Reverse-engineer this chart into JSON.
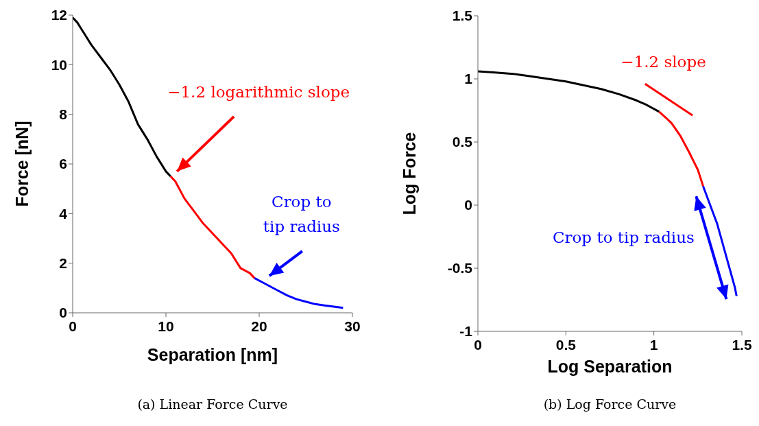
{
  "chart_data": [
    {
      "type": "line",
      "title": "(a) Linear Force Curve",
      "xlabel": "Separation [nm]",
      "ylabel": "Force [nN]",
      "xlim": [
        0,
        30
      ],
      "xticks": [
        0,
        10,
        20,
        30
      ],
      "ylim": [
        0,
        12
      ],
      "yticks": [
        0,
        2,
        4,
        6,
        8,
        10,
        12
      ],
      "annotations": [
        "−1.2 logarithmic slope",
        "Crop to\ntip radius"
      ],
      "series": [
        {
          "color": "#000000",
          "x": [
            0,
            0.5,
            1,
            1.5,
            2,
            3,
            4,
            5,
            6,
            7,
            8,
            9,
            10,
            10.5
          ],
          "values": [
            11.9,
            11.7,
            11.4,
            11.1,
            10.8,
            10.3,
            9.8,
            9.2,
            8.5,
            7.6,
            7.0,
            6.3,
            5.7,
            5.5
          ]
        },
        {
          "color": "#ff0000",
          "x": [
            10.5,
            11,
            12,
            13,
            14,
            15,
            16,
            17,
            18,
            19,
            19.5
          ],
          "values": [
            5.5,
            5.3,
            4.6,
            4.1,
            3.6,
            3.2,
            2.8,
            2.4,
            1.8,
            1.6,
            1.4
          ]
        },
        {
          "color": "#0000ff",
          "x": [
            19.5,
            20,
            21,
            22,
            23,
            24,
            25,
            26,
            27,
            28,
            29
          ],
          "values": [
            1.4,
            1.3,
            1.1,
            0.9,
            0.7,
            0.55,
            0.45,
            0.35,
            0.3,
            0.25,
            0.2
          ]
        }
      ]
    },
    {
      "type": "line",
      "title": "(b) Log Force Curve",
      "xlabel": "Log Separation",
      "ylabel": "Log Force",
      "xlim": [
        0,
        1.5
      ],
      "xticks": [
        0,
        0.5,
        1,
        1.5
      ],
      "ylim": [
        -1,
        1.5
      ],
      "yticks": [
        -1,
        -0.5,
        0,
        0.5,
        1,
        1.5
      ],
      "annotations": [
        "−1.2 slope",
        "Crop to tip radius"
      ],
      "series": [
        {
          "color": "#000000",
          "x": [
            0,
            0.1,
            0.2,
            0.3,
            0.4,
            0.5,
            0.6,
            0.7,
            0.8,
            0.9,
            0.95,
            1.03
          ],
          "values": [
            1.06,
            1.05,
            1.04,
            1.02,
            1.0,
            0.98,
            0.95,
            0.92,
            0.88,
            0.83,
            0.8,
            0.74
          ]
        },
        {
          "color": "#ff0000",
          "x": [
            1.03,
            1.07,
            1.1,
            1.15,
            1.2,
            1.25,
            1.28
          ],
          "values": [
            0.74,
            0.69,
            0.65,
            0.55,
            0.42,
            0.28,
            0.15
          ]
        },
        {
          "color": "#0000ff",
          "x": [
            1.28,
            1.32,
            1.36,
            1.4,
            1.43,
            1.46,
            1.47
          ],
          "values": [
            0.15,
            0.0,
            -0.15,
            -0.35,
            -0.5,
            -0.65,
            -0.72
          ]
        },
        {
          "type": "line",
          "color": "#ff0000",
          "x": [
            0.95,
            1.22
          ],
          "values": [
            0.96,
            0.71
          ]
        }
      ]
    }
  ]
}
